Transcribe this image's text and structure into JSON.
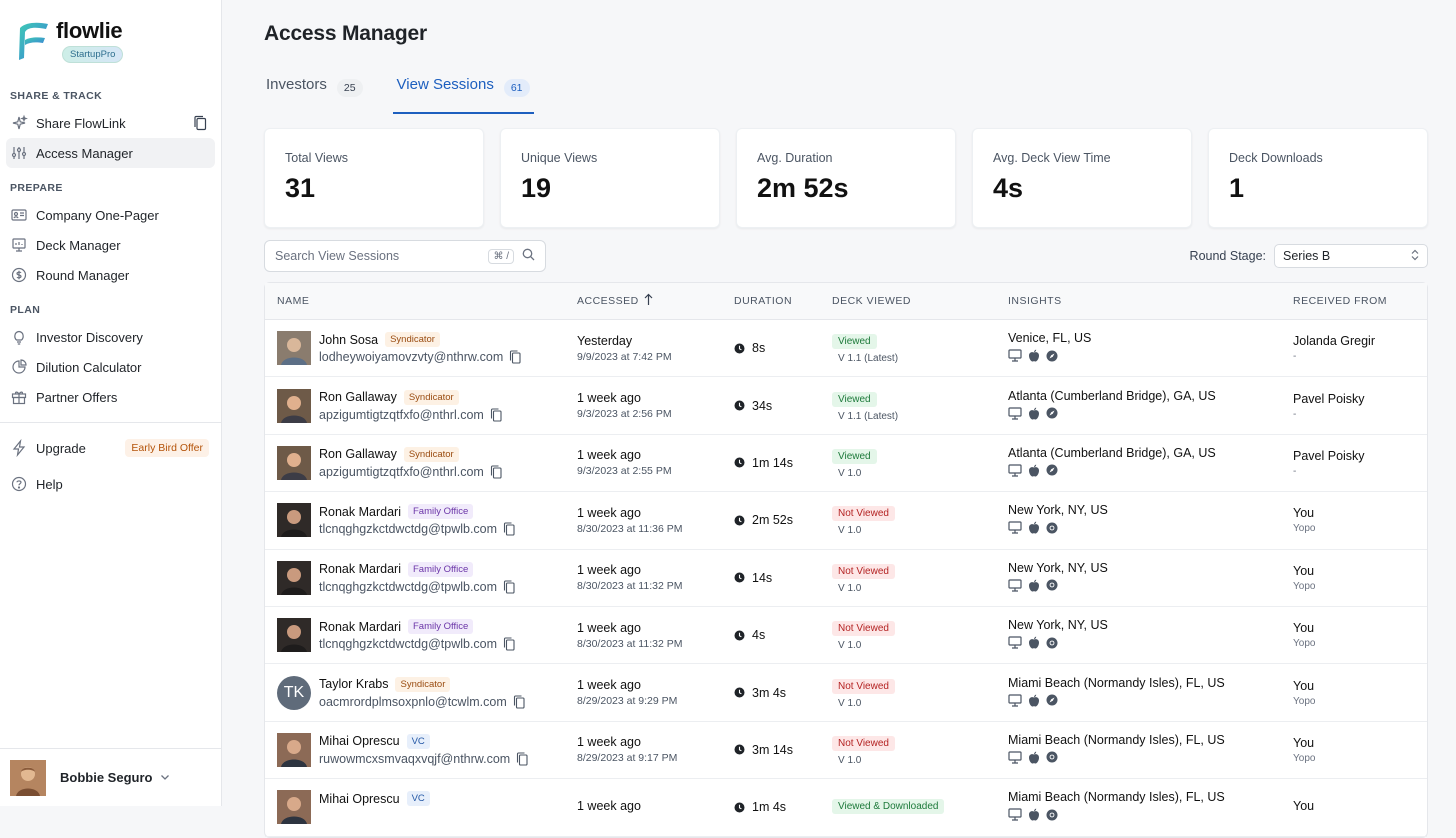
{
  "brand": {
    "name": "flowlie",
    "badge": "StartupPro"
  },
  "sidebar": {
    "sections": [
      {
        "label": "SHARE & TRACK"
      },
      {
        "label": "PREPARE"
      },
      {
        "label": "PLAN"
      }
    ],
    "items": [
      {
        "label": "Share FlowLink"
      },
      {
        "label": "Access Manager"
      },
      {
        "label": "Company One-Pager"
      },
      {
        "label": "Deck Manager"
      },
      {
        "label": "Round Manager"
      },
      {
        "label": "Investor Discovery"
      },
      {
        "label": "Dilution Calculator"
      },
      {
        "label": "Partner Offers"
      },
      {
        "label": "Upgrade",
        "badge": "Early Bird Offer"
      },
      {
        "label": "Help"
      }
    ],
    "user": {
      "name": "Bobbie Seguro"
    }
  },
  "header": {
    "title": "Access Manager"
  },
  "tabs": [
    {
      "label": "Investors",
      "count": "25"
    },
    {
      "label": "View Sessions",
      "count": "61"
    }
  ],
  "stats": [
    {
      "label": "Total Views",
      "value": "31"
    },
    {
      "label": "Unique Views",
      "value": "19"
    },
    {
      "label": "Avg. Duration",
      "value": "2m 52s"
    },
    {
      "label": "Avg. Deck View Time",
      "value": "4s"
    },
    {
      "label": "Deck Downloads",
      "value": "1"
    }
  ],
  "search": {
    "placeholder": "Search View Sessions",
    "shortcut": "⌘ /"
  },
  "round": {
    "label": "Round Stage:",
    "value": "Series B"
  },
  "table": {
    "headers": {
      "name": "NAME",
      "accessed": "ACCESSED",
      "duration": "DURATION",
      "deck": "DECK VIEWED",
      "insights": "INSIGHTS",
      "from": "RECEIVED FROM"
    },
    "rows": [
      {
        "name": "John Sosa",
        "tag": "Syndicator",
        "email": "lodheywoiyamovzvty@nthrw.com",
        "accessed": "Yesterday",
        "accessed_at": "9/9/2023 at 7:42 PM",
        "duration": "8s",
        "status": "Viewed",
        "version": "V 1.1 (Latest)",
        "location": "Venice, FL, US",
        "from": "Jolanda Gregir",
        "from_sub": "-"
      },
      {
        "name": "Ron Gallaway",
        "tag": "Syndicator",
        "email": "apzigumtigtzqtfxfo@nthrl.com",
        "accessed": "1 week ago",
        "accessed_at": "9/3/2023 at 2:56 PM",
        "duration": "34s",
        "status": "Viewed",
        "version": "V 1.1 (Latest)",
        "location": "Atlanta (Cumberland Bridge), GA, US",
        "from": "Pavel Poisky",
        "from_sub": "-"
      },
      {
        "name": "Ron Gallaway",
        "tag": "Syndicator",
        "email": "apzigumtigtzqtfxfo@nthrl.com",
        "accessed": "1 week ago",
        "accessed_at": "9/3/2023 at 2:55 PM",
        "duration": "1m 14s",
        "status": "Viewed",
        "version": "V 1.0",
        "location": "Atlanta (Cumberland Bridge), GA, US",
        "from": "Pavel Poisky",
        "from_sub": "-"
      },
      {
        "name": "Ronak Mardari",
        "tag": "Family Office",
        "email": "tlcnqghgzkctdwctdg@tpwlb.com",
        "accessed": "1 week ago",
        "accessed_at": "8/30/2023 at 11:36 PM",
        "duration": "2m 52s",
        "status": "Not Viewed",
        "version": "V 1.0",
        "location": "New York, NY, US",
        "from": "You",
        "from_sub": "Yopo"
      },
      {
        "name": "Ronak Mardari",
        "tag": "Family Office",
        "email": "tlcnqghgzkctdwctdg@tpwlb.com",
        "accessed": "1 week ago",
        "accessed_at": "8/30/2023 at 11:32 PM",
        "duration": "14s",
        "status": "Not Viewed",
        "version": "V 1.0",
        "location": "New York, NY, US",
        "from": "You",
        "from_sub": "Yopo"
      },
      {
        "name": "Ronak Mardari",
        "tag": "Family Office",
        "email": "tlcnqghgzkctdwctdg@tpwlb.com",
        "accessed": "1 week ago",
        "accessed_at": "8/30/2023 at 11:32 PM",
        "duration": "4s",
        "status": "Not Viewed",
        "version": "V 1.0",
        "location": "New York, NY, US",
        "from": "You",
        "from_sub": "Yopo"
      },
      {
        "name": "Taylor Krabs",
        "tag": "Syndicator",
        "initials": "TK",
        "email": "oacmrordplmsoxpnlo@tcwlm.com",
        "accessed": "1 week ago",
        "accessed_at": "8/29/2023 at 9:29 PM",
        "duration": "3m 4s",
        "status": "Not Viewed",
        "version": "V 1.0",
        "location": "Miami Beach (Normandy Isles), FL, US",
        "from": "You",
        "from_sub": "Yopo"
      },
      {
        "name": "Mihai Oprescu",
        "tag": "VC",
        "email": "ruwowmcxsmvaqxvqjf@nthrw.com",
        "accessed": "1 week ago",
        "accessed_at": "8/29/2023 at 9:17 PM",
        "duration": "3m 14s",
        "status": "Not Viewed",
        "version": "V 1.0",
        "location": "Miami Beach (Normandy Isles), FL, US",
        "from": "You",
        "from_sub": "Yopo"
      },
      {
        "name": "Mihai Oprescu",
        "tag": "VC",
        "email": "",
        "accessed": "1 week ago",
        "accessed_at": "",
        "duration": "1m 4s",
        "status": "Viewed & Downloaded",
        "version": "",
        "location": "Miami Beach (Normandy Isles), FL, US",
        "from": "You",
        "from_sub": ""
      }
    ]
  },
  "colors": {
    "accent": "#1d5fbf",
    "viewed": "#1e7a3b",
    "not_viewed": "#b42323",
    "syndicator": "#9a4d12",
    "family_office": "#6b35a8",
    "vc": "#2458a6"
  }
}
